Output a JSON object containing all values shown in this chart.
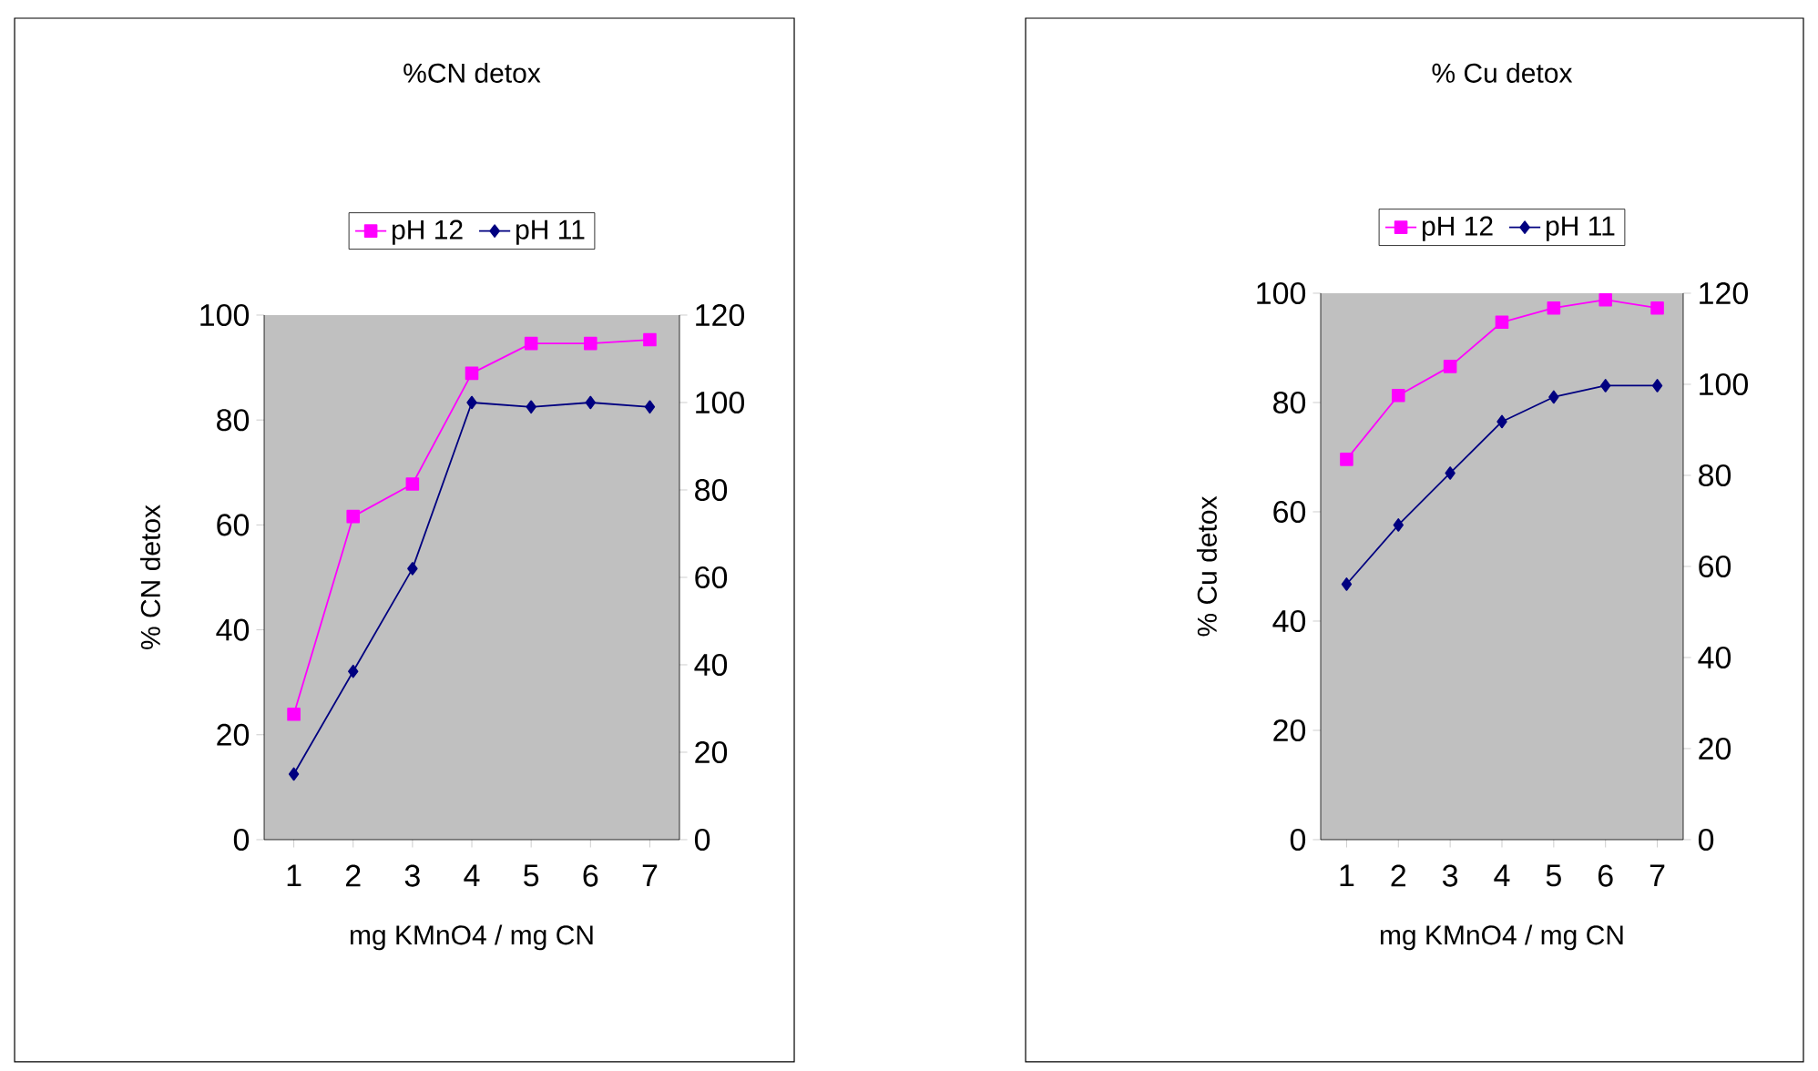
{
  "chart_data": [
    {
      "type": "line",
      "title": "%CN detox",
      "xlabel": "mg KMnO4 / mg CN",
      "ylabel": "% CN detox",
      "categories": [
        "1",
        "2",
        "3",
        "4",
        "5",
        "6",
        "7"
      ],
      "ylim": [
        0,
        100
      ],
      "yticks": [
        0,
        20,
        40,
        60,
        80,
        100
      ],
      "y2lim": [
        0,
        120
      ],
      "y2ticks": [
        0,
        20,
        40,
        60,
        80,
        100,
        120
      ],
      "legend": "top",
      "grid": false,
      "series": [
        {
          "name": "pH 12",
          "color": "#ff00ff",
          "marker": "square",
          "values": [
            23.9,
            61.6,
            67.8,
            88.9,
            94.6,
            94.6,
            95.3
          ]
        },
        {
          "name": "pH 11",
          "color": "#000080",
          "marker": "diamond",
          "axis": "y2",
          "values": [
            15,
            38.5,
            62,
            100,
            99,
            100,
            99
          ]
        }
      ]
    },
    {
      "type": "line",
      "title": "% Cu detox",
      "xlabel": "mg KMnO4 / mg CN",
      "ylabel": "% Cu detox",
      "categories": [
        "1",
        "2",
        "3",
        "4",
        "5",
        "6",
        "7"
      ],
      "ylim": [
        0,
        100
      ],
      "yticks": [
        0,
        20,
        40,
        60,
        80,
        100
      ],
      "y2lim": [
        0,
        120
      ],
      "y2ticks": [
        0,
        20,
        40,
        60,
        80,
        100,
        120
      ],
      "legend": "top",
      "grid": false,
      "series": [
        {
          "name": "pH 12",
          "color": "#ff00ff",
          "marker": "square",
          "values": [
            69.6,
            81.3,
            86.6,
            94.7,
            97.3,
            98.8,
            97.3
          ]
        },
        {
          "name": "pH 11",
          "color": "#000080",
          "marker": "diamond",
          "axis": "y2",
          "values": [
            56.1,
            69.1,
            80.5,
            91.8,
            97.2,
            99.7,
            99.7
          ]
        }
      ]
    }
  ]
}
